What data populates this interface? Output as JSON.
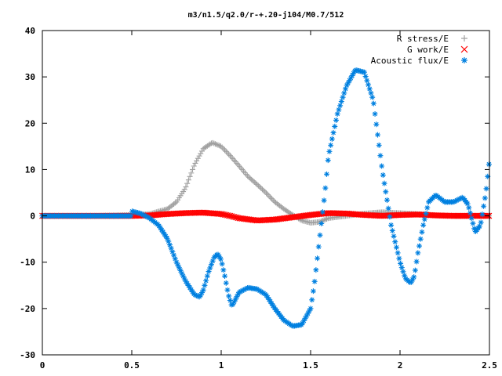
{
  "chart_data": {
    "type": "scatter",
    "title": "m3/n1.5/q2.0/r-+.20-j104/M0.7/512",
    "xlabel": "",
    "ylabel": "",
    "xlim": [
      0,
      2.5
    ],
    "ylim": [
      -30,
      40
    ],
    "xticks": [
      0,
      0.5,
      1,
      1.5,
      2,
      2.5
    ],
    "xtick_labels": [
      "0",
      "0.5",
      "1",
      "1.5",
      "2",
      "2.5"
    ],
    "yticks": [
      -30,
      -20,
      -10,
      0,
      10,
      20,
      30,
      40
    ],
    "ytick_labels": [
      "-30",
      "-20",
      "-10",
      "0",
      "10",
      "20",
      "30",
      "40"
    ],
    "grid": false,
    "legend_position": "top-right",
    "series": [
      {
        "name": "R stress/E",
        "marker": "plus",
        "color": "#a0a0a0",
        "points": [
          [
            0,
            0
          ],
          [
            0.3,
            0
          ],
          [
            0.5,
            0.2
          ],
          [
            0.6,
            0.4
          ],
          [
            0.7,
            1.5
          ],
          [
            0.75,
            3
          ],
          [
            0.8,
            6
          ],
          [
            0.85,
            11
          ],
          [
            0.9,
            14.5
          ],
          [
            0.95,
            15.8
          ],
          [
            1.0,
            15
          ],
          [
            1.05,
            13
          ],
          [
            1.1,
            10.8
          ],
          [
            1.15,
            8.5
          ],
          [
            1.2,
            6.8
          ],
          [
            1.25,
            5
          ],
          [
            1.3,
            3
          ],
          [
            1.35,
            1.5
          ],
          [
            1.4,
            0.2
          ],
          [
            1.45,
            -1
          ],
          [
            1.5,
            -1.5
          ],
          [
            1.55,
            -1.3
          ],
          [
            1.6,
            -0.5
          ],
          [
            1.7,
            0
          ],
          [
            1.8,
            0.5
          ],
          [
            1.9,
            0.8
          ],
          [
            2.0,
            0.6
          ],
          [
            2.1,
            0.4
          ],
          [
            2.2,
            0.1
          ],
          [
            2.3,
            0
          ],
          [
            2.5,
            0
          ]
        ]
      },
      {
        "name": "G work/E",
        "marker": "cross",
        "color": "#ff0000",
        "points": [
          [
            0,
            0
          ],
          [
            0.5,
            0
          ],
          [
            0.6,
            0.1
          ],
          [
            0.7,
            0.4
          ],
          [
            0.8,
            0.6
          ],
          [
            0.9,
            0.7
          ],
          [
            1.0,
            0.4
          ],
          [
            1.05,
            0
          ],
          [
            1.1,
            -0.5
          ],
          [
            1.2,
            -1
          ],
          [
            1.3,
            -0.8
          ],
          [
            1.4,
            -0.3
          ],
          [
            1.5,
            0.2
          ],
          [
            1.6,
            0.6
          ],
          [
            1.7,
            0.5
          ],
          [
            1.8,
            0.2
          ],
          [
            1.9,
            0
          ],
          [
            2.0,
            0.2
          ],
          [
            2.1,
            0.3
          ],
          [
            2.2,
            0.1
          ],
          [
            2.3,
            0
          ],
          [
            2.5,
            0
          ]
        ]
      },
      {
        "name": "Acoustic flux/E",
        "marker": "star",
        "color": "#0080e0",
        "points": [
          [
            0,
            0
          ],
          [
            0.5,
            0
          ],
          [
            0.5,
            1
          ],
          [
            0.55,
            0.5
          ],
          [
            0.6,
            -0.5
          ],
          [
            0.65,
            -2
          ],
          [
            0.7,
            -5
          ],
          [
            0.75,
            -10
          ],
          [
            0.8,
            -14
          ],
          [
            0.85,
            -17
          ],
          [
            0.88,
            -17.5
          ],
          [
            0.9,
            -16
          ],
          [
            0.93,
            -12
          ],
          [
            0.96,
            -9
          ],
          [
            0.98,
            -8.2
          ],
          [
            1.0,
            -9.5
          ],
          [
            1.02,
            -13
          ],
          [
            1.04,
            -17
          ],
          [
            1.06,
            -19.5
          ],
          [
            1.08,
            -18
          ],
          [
            1.1,
            -16.5
          ],
          [
            1.15,
            -15.5
          ],
          [
            1.2,
            -15.8
          ],
          [
            1.25,
            -17
          ],
          [
            1.3,
            -20
          ],
          [
            1.35,
            -22.5
          ],
          [
            1.4,
            -23.8
          ],
          [
            1.45,
            -23.5
          ],
          [
            1.5,
            -20
          ],
          [
            1.52,
            -15
          ],
          [
            1.55,
            -5
          ],
          [
            1.58,
            5
          ],
          [
            1.6,
            13
          ],
          [
            1.65,
            22
          ],
          [
            1.7,
            28
          ],
          [
            1.75,
            31.5
          ],
          [
            1.8,
            31
          ],
          [
            1.85,
            25
          ],
          [
            1.9,
            10
          ],
          [
            1.95,
            -2
          ],
          [
            2.0,
            -10
          ],
          [
            2.03,
            -13.5
          ],
          [
            2.06,
            -14.5
          ],
          [
            2.08,
            -13
          ],
          [
            2.1,
            -8
          ],
          [
            2.13,
            -2
          ],
          [
            2.16,
            3
          ],
          [
            2.2,
            4.5
          ],
          [
            2.25,
            3
          ],
          [
            2.3,
            3
          ],
          [
            2.35,
            4
          ],
          [
            2.38,
            2.5
          ],
          [
            2.42,
            -3.5
          ],
          [
            2.45,
            -2
          ],
          [
            2.48,
            5
          ],
          [
            2.5,
            12
          ]
        ]
      }
    ]
  }
}
